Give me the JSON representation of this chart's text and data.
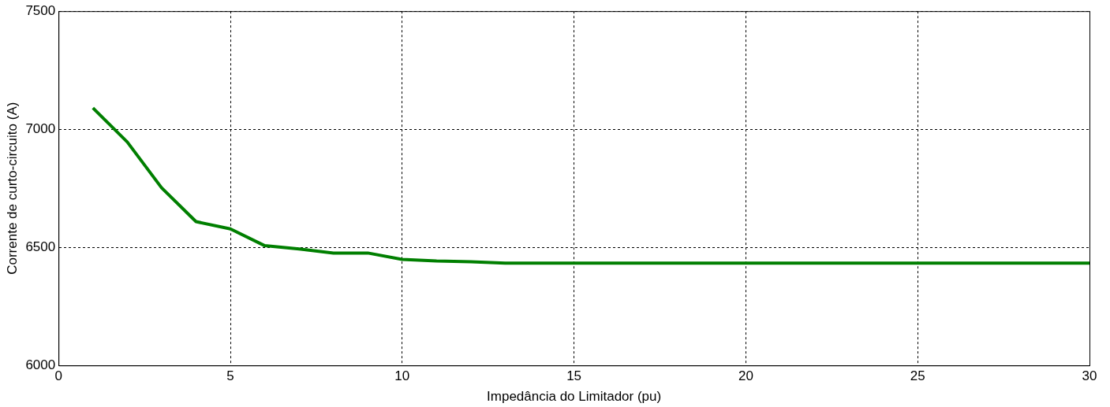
{
  "chart_data": {
    "type": "line",
    "xlabel": "Impedância do Limitador (pu)",
    "ylabel": "Corrente de curto-circuito (A)",
    "x": [
      1,
      2,
      3,
      4,
      5,
      6,
      7,
      8,
      9,
      10,
      11,
      12,
      13,
      14,
      15,
      16,
      17,
      18,
      19,
      20,
      21,
      22,
      23,
      24,
      25,
      26,
      27,
      28,
      29,
      30
    ],
    "series": [
      {
        "color": "#007f00",
        "values": [
          7090,
          6946,
          6752,
          6609,
          6578,
          6507,
          6493,
          6476,
          6476,
          6449,
          6442,
          6439,
          6433,
          6433,
          6433,
          6433,
          6433,
          6433,
          6433,
          6433,
          6433,
          6433,
          6433,
          6433,
          6433,
          6433,
          6433,
          6433,
          6433,
          6433
        ]
      }
    ],
    "xlim": [
      0,
      30
    ],
    "xticks": [
      0,
      5,
      10,
      15,
      20,
      25,
      30
    ],
    "ylim": [
      6000,
      7500
    ],
    "yticks": [
      6000,
      6500,
      7000,
      7500
    ],
    "grid": true,
    "legend": false,
    "marker": "none",
    "line_style": "solid"
  }
}
